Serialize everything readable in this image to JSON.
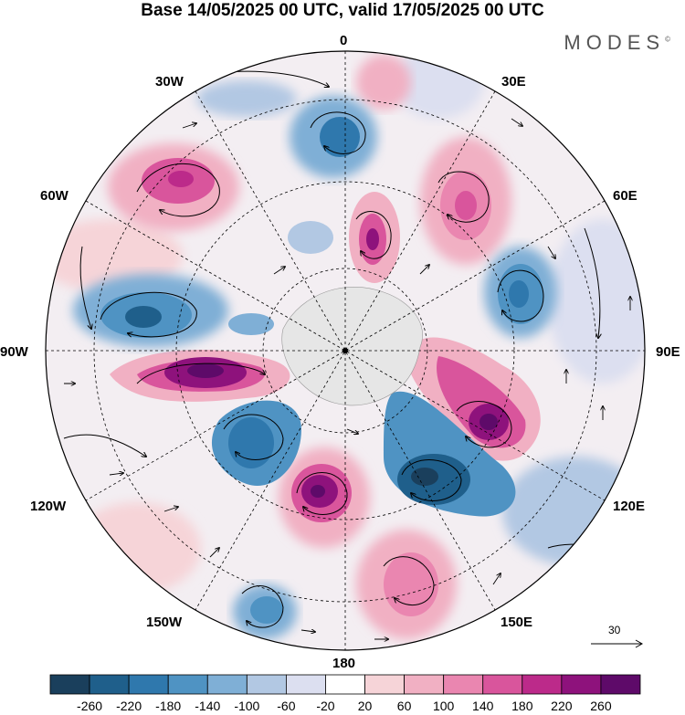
{
  "title": "Base 14/05/2025 00 UTC, valid 17/05/2025 00 UTC",
  "brand": "MODES",
  "brand_mark": "©",
  "longitude_labels": {
    "top": "0",
    "top_right": "30E",
    "right_upper": "60E",
    "right": "90E",
    "right_lower": "120E",
    "bottom_right": "150E",
    "bottom": "180",
    "bottom_left": "150W",
    "left_lower": "120W",
    "left": "90W",
    "left_upper": "60W",
    "top_left": "30W"
  },
  "reference_vector": "30",
  "colorbar": {
    "tick_labels": [
      "-260",
      "-220",
      "-180",
      "-140",
      "-100",
      "-60",
      "-20",
      "20",
      "60",
      "100",
      "140",
      "180",
      "220",
      "260"
    ],
    "colors": [
      "#1a3f5c",
      "#1f5f8b",
      "#2f78ad",
      "#4f93c3",
      "#7fafd6",
      "#b2c8e3",
      "#dcdff0",
      "#ffffff",
      "#f6d4d8",
      "#f1b0c3",
      "#ea86b0",
      "#d9559c",
      "#bc2a8a",
      "#8e127c",
      "#5e0a69"
    ]
  },
  "map": {
    "projection": "south-polar-stereographic",
    "field_colors": {
      "negative_strong": "#1f5f8b",
      "negative": "#4f93c3",
      "negative_weak": "#b2c8e3",
      "positive_weak": "#f6d4d8",
      "positive": "#ea86b0",
      "positive_strong": "#8e127c",
      "land": "#e6e6e6"
    }
  }
}
